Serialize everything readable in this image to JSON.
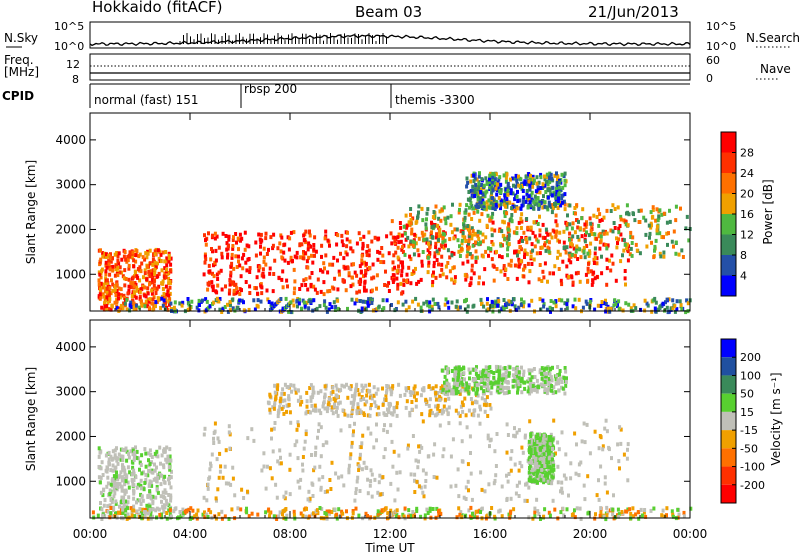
{
  "header": {
    "station_title": "Hokkaido (fitACF)",
    "beam_label": "Beam 03",
    "date_label": "21/Jun/2013"
  },
  "noise_panel": {
    "left_label": "N.Sky",
    "right_label": "N.Search",
    "left_ticks": [
      "10^5",
      "10^0"
    ],
    "right_ticks": [
      "10^5",
      "10^0"
    ]
  },
  "freq_panel": {
    "left_label_line1": "Freq.",
    "left_label_line2": "[MHz]",
    "left_ticks": [
      "12",
      "8"
    ],
    "right_label": "Nave",
    "right_ticks": [
      "60",
      "0"
    ]
  },
  "cpid_panel": {
    "label": "CPID",
    "modes": [
      "normal (fast) 151",
      "rbsp 200",
      "themis -3300"
    ]
  },
  "colors": {
    "power": [
      "#0000ff",
      "#2450a8",
      "#3a8a5a",
      "#4fb840",
      "#f0a000",
      "#ff7000",
      "#ff3000",
      "#ff0000"
    ],
    "velocity": [
      "#0000ff",
      "#2050a0",
      "#3a8a5a",
      "#58d030",
      "#c0c0b8",
      "#f0a000",
      "#ff7000",
      "#ff3000",
      "#ff0000"
    ]
  },
  "chart_data": [
    {
      "type": "heatmap",
      "name": "power",
      "ylabel": "Slant Range [km]",
      "xlim": [
        "00:00",
        "24:00"
      ],
      "ylim": [
        180,
        4600
      ],
      "y_ticks": [
        1000,
        2000,
        3000,
        4000
      ],
      "x_tick_labels": [
        "00:00",
        "04:00",
        "08:00",
        "12:00",
        "16:00",
        "20:00",
        "00:00"
      ],
      "colorbar": {
        "label": "Power [dB]",
        "ticks": [
          "4",
          "8",
          "12",
          "16",
          "20",
          "24",
          "28"
        ]
      }
    },
    {
      "type": "heatmap",
      "name": "velocity",
      "ylabel": "Slant Range [km]",
      "xlabel": "Time UT",
      "xlim": [
        "00:00",
        "24:00"
      ],
      "ylim": [
        180,
        4600
      ],
      "y_ticks": [
        1000,
        2000,
        3000,
        4000
      ],
      "x_tick_labels": [
        "00:00",
        "04:00",
        "08:00",
        "12:00",
        "16:00",
        "20:00",
        "00:00"
      ],
      "colorbar": {
        "label": "Velocity [m s⁻¹]",
        "ticks": [
          "200",
          "100",
          "50",
          "15",
          "-15",
          "-50",
          "-100",
          "-200"
        ]
      }
    }
  ]
}
